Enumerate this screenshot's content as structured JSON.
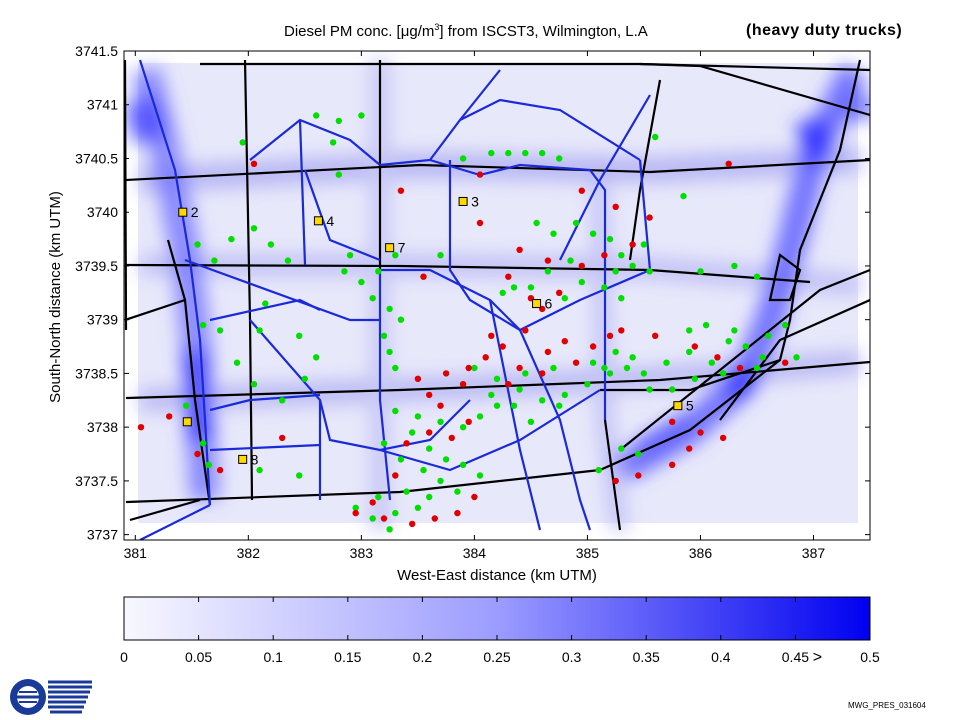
{
  "chart_data": {
    "type": "scatter",
    "title_prefix": "Diesel PM conc. [",
    "title_unit_main": "g/m",
    "title_unit_exp": "3",
    "title_suffix": "] from ISCST3, Wilmington, L.A",
    "mu_glyph": "μ",
    "subtitle": "(heavy duty trucks)",
    "xlabel": "West-East distance (km UTM)",
    "ylabel": "South-North distance (km UTM)",
    "xlim": [
      380.9,
      387.5
    ],
    "ylim": [
      3736.95,
      3741.5
    ],
    "xticks": [
      381,
      382,
      383,
      384,
      385,
      386,
      387
    ],
    "yticks": [
      3737,
      3737.5,
      3738,
      3738.5,
      3739,
      3739.5,
      3740,
      3740.5,
      3741,
      3741.5
    ],
    "ytick_labels": [
      "3737",
      "3737.5",
      "3738",
      "3738.5",
      "3739",
      "3739.5",
      "3740",
      "3740.5",
      "3741",
      "3741.5"
    ],
    "colorbar": {
      "min": 0,
      "max": 0.5,
      "ticks": [
        0,
        0.05,
        0.1,
        0.15,
        0.2,
        0.25,
        0.3,
        0.35,
        0.4,
        0.45,
        0.5
      ],
      "tick_labels": [
        "0",
        "0.05",
        "0.1",
        "0.15",
        "0.2",
        "0.25",
        "0.3",
        "0.35",
        "0.4",
        "0.45",
        "0.5"
      ],
      "over_marker": ">"
    },
    "monitors": [
      {
        "label": "2",
        "x": 381.42,
        "y": 3740.0
      },
      {
        "label": "3",
        "x": 383.9,
        "y": 3740.1
      },
      {
        "label": "4",
        "x": 382.62,
        "y": 3739.92
      },
      {
        "label": "5",
        "x": 385.8,
        "y": 3738.2
      },
      {
        "label": "6",
        "x": 384.55,
        "y": 3739.15
      },
      {
        "label": "7",
        "x": 383.25,
        "y": 3739.67
      },
      {
        "label": "8",
        "x": 381.95,
        "y": 3737.7
      },
      {
        "label": "",
        "x": 381.46,
        "y": 3738.05
      }
    ],
    "series": [
      {
        "color": "#00e000",
        "points": [
          [
            382.8,
            3740.85
          ],
          [
            382.75,
            3740.65
          ],
          [
            382.8,
            3740.35
          ],
          [
            383.0,
            3740.9
          ],
          [
            382.6,
            3740.9
          ],
          [
            381.95,
            3740.65
          ],
          [
            384.15,
            3740.55
          ],
          [
            384.3,
            3740.55
          ],
          [
            384.45,
            3740.55
          ],
          [
            384.6,
            3740.55
          ],
          [
            384.75,
            3740.5
          ],
          [
            383.9,
            3740.5
          ],
          [
            382.05,
            3739.85
          ],
          [
            382.2,
            3739.7
          ],
          [
            381.85,
            3739.75
          ],
          [
            381.55,
            3739.7
          ],
          [
            381.7,
            3739.55
          ],
          [
            382.35,
            3739.55
          ],
          [
            382.9,
            3739.6
          ],
          [
            382.85,
            3739.45
          ],
          [
            383.0,
            3739.35
          ],
          [
            383.15,
            3739.45
          ],
          [
            383.3,
            3739.6
          ],
          [
            383.7,
            3739.6
          ],
          [
            383.1,
            3739.2
          ],
          [
            383.25,
            3739.1
          ],
          [
            383.35,
            3739.0
          ],
          [
            383.2,
            3738.85
          ],
          [
            383.25,
            3738.7
          ],
          [
            383.3,
            3738.55
          ],
          [
            382.15,
            3739.15
          ],
          [
            382.1,
            3738.9
          ],
          [
            382.45,
            3738.85
          ],
          [
            382.6,
            3738.65
          ],
          [
            382.5,
            3738.45
          ],
          [
            382.3,
            3738.25
          ],
          [
            381.75,
            3738.9
          ],
          [
            381.6,
            3738.95
          ],
          [
            381.9,
            3738.6
          ],
          [
            382.05,
            3738.4
          ],
          [
            381.45,
            3738.2
          ],
          [
            381.6,
            3737.85
          ],
          [
            384.55,
            3739.9
          ],
          [
            384.7,
            3739.8
          ],
          [
            384.9,
            3739.9
          ],
          [
            385.05,
            3739.8
          ],
          [
            385.2,
            3739.75
          ],
          [
            385.3,
            3739.6
          ],
          [
            385.5,
            3739.7
          ],
          [
            385.4,
            3739.5
          ],
          [
            385.25,
            3739.45
          ],
          [
            384.95,
            3739.35
          ],
          [
            384.85,
            3739.55
          ],
          [
            384.65,
            3739.45
          ],
          [
            384.5,
            3739.3
          ],
          [
            384.35,
            3739.3
          ],
          [
            384.25,
            3739.25
          ],
          [
            384.8,
            3739.2
          ],
          [
            385.15,
            3739.3
          ],
          [
            385.3,
            3739.2
          ],
          [
            385.55,
            3739.45
          ],
          [
            386.0,
            3739.45
          ],
          [
            386.3,
            3739.5
          ],
          [
            386.5,
            3739.4
          ],
          [
            385.85,
            3740.15
          ],
          [
            385.6,
            3740.7
          ],
          [
            384.0,
            3738.55
          ],
          [
            384.2,
            3738.45
          ],
          [
            384.4,
            3738.35
          ],
          [
            384.6,
            3738.25
          ],
          [
            384.8,
            3738.3
          ],
          [
            385.0,
            3738.4
          ],
          [
            385.2,
            3738.5
          ],
          [
            385.35,
            3738.55
          ],
          [
            385.5,
            3738.5
          ],
          [
            385.7,
            3738.6
          ],
          [
            385.9,
            3738.7
          ],
          [
            386.1,
            3738.6
          ],
          [
            386.25,
            3738.8
          ],
          [
            386.4,
            3738.75
          ],
          [
            386.55,
            3738.65
          ],
          [
            386.2,
            3738.5
          ],
          [
            385.95,
            3738.45
          ],
          [
            385.75,
            3738.35
          ],
          [
            385.55,
            3738.35
          ],
          [
            385.4,
            3738.65
          ],
          [
            385.25,
            3738.7
          ],
          [
            385.15,
            3738.55
          ],
          [
            385.05,
            3738.6
          ],
          [
            386.5,
            3738.55
          ],
          [
            386.6,
            3738.85
          ],
          [
            386.75,
            3738.95
          ],
          [
            386.85,
            3738.65
          ],
          [
            385.9,
            3738.9
          ],
          [
            386.05,
            3738.95
          ],
          [
            386.3,
            3738.9
          ],
          [
            383.3,
            3738.15
          ],
          [
            383.5,
            3738.1
          ],
          [
            383.7,
            3738.05
          ],
          [
            383.9,
            3738.0
          ],
          [
            384.05,
            3738.1
          ],
          [
            384.2,
            3738.2
          ],
          [
            383.45,
            3737.95
          ],
          [
            383.6,
            3737.8
          ],
          [
            383.75,
            3737.7
          ],
          [
            383.9,
            3737.65
          ],
          [
            384.05,
            3737.55
          ],
          [
            383.2,
            3737.85
          ],
          [
            383.35,
            3737.7
          ],
          [
            383.55,
            3737.6
          ],
          [
            383.7,
            3737.5
          ],
          [
            383.85,
            3737.4
          ],
          [
            383.6,
            3737.35
          ],
          [
            383.4,
            3737.4
          ],
          [
            383.15,
            3737.35
          ],
          [
            383.3,
            3737.2
          ],
          [
            383.5,
            3737.25
          ],
          [
            383.25,
            3737.05
          ],
          [
            383.1,
            3737.15
          ],
          [
            382.95,
            3737.25
          ],
          [
            384.15,
            3738.3
          ],
          [
            384.35,
            3738.2
          ],
          [
            384.5,
            3738.05
          ],
          [
            384.75,
            3738.2
          ],
          [
            384.45,
            3738.5
          ],
          [
            384.7,
            3738.55
          ],
          [
            385.1,
            3737.6
          ],
          [
            385.3,
            3737.8
          ],
          [
            385.45,
            3737.75
          ],
          [
            382.45,
            3737.55
          ],
          [
            382.1,
            3737.6
          ],
          [
            381.65,
            3737.65
          ]
        ]
      },
      {
        "color": "#e00000",
        "points": [
          [
            382.05,
            3740.45
          ],
          [
            383.35,
            3740.2
          ],
          [
            384.05,
            3740.35
          ],
          [
            384.95,
            3740.2
          ],
          [
            385.25,
            3740.05
          ],
          [
            386.25,
            3740.45
          ],
          [
            385.55,
            3739.95
          ],
          [
            384.05,
            3739.9
          ],
          [
            385.4,
            3739.7
          ],
          [
            385.15,
            3739.6
          ],
          [
            384.4,
            3739.65
          ],
          [
            384.95,
            3739.5
          ],
          [
            384.3,
            3739.4
          ],
          [
            384.75,
            3739.25
          ],
          [
            384.6,
            3739.1
          ],
          [
            383.55,
            3739.4
          ],
          [
            384.65,
            3739.55
          ],
          [
            384.5,
            3739.2
          ],
          [
            385.3,
            3738.9
          ],
          [
            385.6,
            3738.85
          ],
          [
            385.95,
            3738.75
          ],
          [
            386.15,
            3738.65
          ],
          [
            386.75,
            3738.6
          ],
          [
            386.35,
            3738.55
          ],
          [
            384.1,
            3738.65
          ],
          [
            383.9,
            3738.4
          ],
          [
            383.7,
            3738.2
          ],
          [
            384.3,
            3738.4
          ],
          [
            384.6,
            3738.5
          ],
          [
            384.9,
            3738.6
          ],
          [
            385.05,
            3738.75
          ],
          [
            385.2,
            3738.85
          ],
          [
            384.8,
            3738.8
          ],
          [
            384.65,
            3738.7
          ],
          [
            384.4,
            3738.55
          ],
          [
            384.25,
            3738.75
          ],
          [
            383.6,
            3738.3
          ],
          [
            383.5,
            3738.45
          ],
          [
            383.75,
            3738.5
          ],
          [
            383.95,
            3738.55
          ],
          [
            384.15,
            3738.85
          ],
          [
            384.45,
            3738.9
          ],
          [
            383.95,
            3738.05
          ],
          [
            383.8,
            3737.9
          ],
          [
            383.6,
            3737.95
          ],
          [
            383.4,
            3737.85
          ],
          [
            383.3,
            3737.55
          ],
          [
            383.1,
            3737.3
          ],
          [
            383.2,
            3737.15
          ],
          [
            382.95,
            3737.2
          ],
          [
            383.45,
            3737.1
          ],
          [
            383.65,
            3737.15
          ],
          [
            383.85,
            3737.2
          ],
          [
            384.0,
            3737.35
          ],
          [
            385.25,
            3737.5
          ],
          [
            385.45,
            3737.55
          ],
          [
            385.75,
            3737.65
          ],
          [
            385.9,
            3737.8
          ],
          [
            386.0,
            3737.95
          ],
          [
            386.2,
            3737.9
          ],
          [
            381.05,
            3738.0
          ],
          [
            381.3,
            3738.1
          ],
          [
            381.55,
            3737.75
          ],
          [
            381.75,
            3737.6
          ],
          [
            382.3,
            3737.9
          ],
          [
            385.75,
            3738.05
          ]
        ]
      }
    ]
  },
  "footer": {
    "stamp": "MWG_PRES_031604"
  }
}
